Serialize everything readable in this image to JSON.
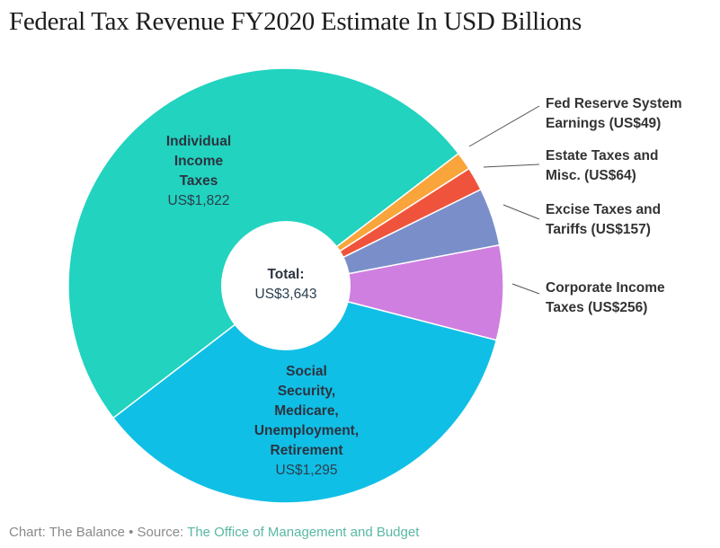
{
  "chart_data": {
    "type": "pie",
    "donut": true,
    "title": "Federal Tax Revenue FY2020 Estimate In USD Billions",
    "unit": "USD Billions",
    "total_label": "Total:",
    "total_value": "US$3,643",
    "total": 3643,
    "slices": [
      {
        "name": "Individual Income Taxes",
        "lines": [
          "Individual",
          "Income",
          "Taxes"
        ],
        "value": 1822,
        "value_label": "US$1,822",
        "color": "#22d3bf",
        "label_position": "inside"
      },
      {
        "name": "Fed Reserve System Earnings",
        "lines": [
          "Fed Reserve System",
          "Earnings (US$49)"
        ],
        "value": 49,
        "color": "#f9a53b",
        "label_position": "outside"
      },
      {
        "name": "Estate Taxes and Misc.",
        "lines": [
          "Estate Taxes and",
          "Misc. (US$64)"
        ],
        "value": 64,
        "color": "#f0533b",
        "label_position": "outside"
      },
      {
        "name": "Excise Taxes and Tariffs",
        "lines": [
          "Excise Taxes and",
          "Tariffs (US$157)"
        ],
        "value": 157,
        "color": "#7a8fc9",
        "label_position": "outside"
      },
      {
        "name": "Corporate Income Taxes",
        "lines": [
          "Corporate Income",
          "Taxes (US$256)"
        ],
        "value": 256,
        "color": "#cf7fe0",
        "label_position": "outside"
      },
      {
        "name": "Social Security, Medicare, Unemployment, Retirement",
        "lines": [
          "Social",
          "Security,",
          "Medicare,",
          "Unemployment,",
          "Retirement"
        ],
        "value": 1295,
        "value_label": "US$1,295",
        "color": "#10bfe6",
        "label_position": "inside"
      }
    ]
  },
  "footer": {
    "prefix": "Chart: The Balance • Source: ",
    "source": "The Office of Management and Budget"
  }
}
